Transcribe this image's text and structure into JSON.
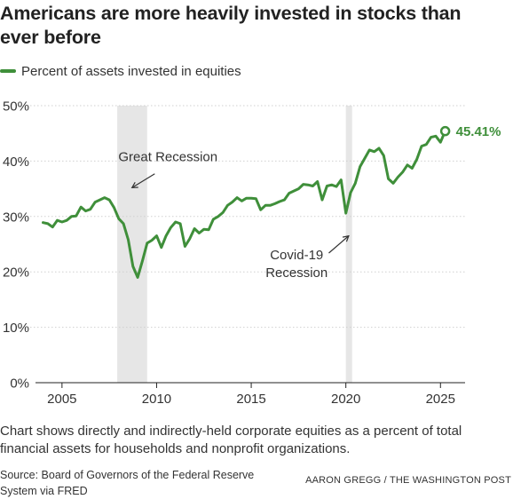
{
  "title": "Americans are more heavily invested in stocks than ever before",
  "caption": "Chart shows directly and indirectly-held corporate equities as a percent of total financial assets for households and nonprofit organizations.",
  "source": "Source: Board of Governors of the Federal Reserve System via FRED",
  "credit": "AARON GREGG / THE WASHINGTON POST",
  "colors": {
    "line": "#3f8f3a",
    "recession": "#e6e6e6",
    "grid": "#d0d0d0",
    "axis": "#222222"
  },
  "chart_data": {
    "type": "line",
    "series": [
      {
        "name": "Percent of assets invested in equities",
        "x": [
          2004.0,
          2004.25,
          2004.5,
          2004.75,
          2005.0,
          2005.25,
          2005.5,
          2005.75,
          2006.0,
          2006.25,
          2006.5,
          2006.75,
          2007.0,
          2007.25,
          2007.5,
          2007.75,
          2008.0,
          2008.25,
          2008.5,
          2008.75,
          2009.0,
          2009.25,
          2009.5,
          2009.75,
          2010.0,
          2010.25,
          2010.5,
          2010.75,
          2011.0,
          2011.25,
          2011.5,
          2011.75,
          2012.0,
          2012.25,
          2012.5,
          2012.75,
          2013.0,
          2013.25,
          2013.5,
          2013.75,
          2014.0,
          2014.25,
          2014.5,
          2014.75,
          2015.0,
          2015.25,
          2015.5,
          2015.75,
          2016.0,
          2016.25,
          2016.5,
          2016.75,
          2017.0,
          2017.25,
          2017.5,
          2017.75,
          2018.0,
          2018.25,
          2018.5,
          2018.75,
          2019.0,
          2019.25,
          2019.5,
          2019.75,
          2020.0,
          2020.25,
          2020.5,
          2020.75,
          2021.0,
          2021.25,
          2021.5,
          2021.75,
          2022.0,
          2022.25,
          2022.5,
          2022.75,
          2023.0,
          2023.25,
          2023.5,
          2023.75,
          2024.0,
          2024.25,
          2024.5,
          2024.75,
          2025.0,
          2025.25
        ],
        "values": [
          28.9,
          28.7,
          28.1,
          29.3,
          29.0,
          29.3,
          30.0,
          30.1,
          31.7,
          31.0,
          31.3,
          32.6,
          33.0,
          33.4,
          33.0,
          31.6,
          29.6,
          28.7,
          25.8,
          21.0,
          19.0,
          22.0,
          25.2,
          25.7,
          26.5,
          24.4,
          26.5,
          28.0,
          29.0,
          28.7,
          24.6,
          26.0,
          27.8,
          27.0,
          27.7,
          27.6,
          29.5,
          30.0,
          30.7,
          32.0,
          32.6,
          33.4,
          32.8,
          33.3,
          33.3,
          33.2,
          31.2,
          32.0,
          32.0,
          32.3,
          32.7,
          33.0,
          34.2,
          34.6,
          35.0,
          35.8,
          35.7,
          35.5,
          36.3,
          33.0,
          35.5,
          35.7,
          35.4,
          36.6,
          30.6,
          34.3,
          36.0,
          39.0,
          40.5,
          42.0,
          41.7,
          42.3,
          41.0,
          36.8,
          36.0,
          37.1,
          38.0,
          39.3,
          38.7,
          40.3,
          42.7,
          43.0,
          44.3,
          44.5,
          43.4,
          45.41
        ]
      }
    ],
    "end_label": "45.41%",
    "xlim": [
      2003.6,
      2026.3
    ],
    "ylim": [
      0,
      50
    ],
    "x_ticks": [
      2005,
      2010,
      2015,
      2020,
      2025
    ],
    "x_tick_labels": [
      "2005",
      "2010",
      "2015",
      "2020",
      "2025"
    ],
    "y_ticks": [
      0,
      10,
      20,
      30,
      40,
      50
    ],
    "y_tick_labels": [
      "0%",
      "10%",
      "20%",
      "30%",
      "40%",
      "50%"
    ],
    "grid": "horizontal",
    "legend": "top-left",
    "recessions": [
      {
        "start": 2007.92,
        "end": 2009.5
      },
      {
        "start": 2020.0,
        "end": 2020.33
      }
    ],
    "annotations": [
      {
        "text_lines": [
          "Great Recession"
        ],
        "x": 2010.6,
        "y": 40.0,
        "arrow_to": [
          2008.7,
          35.2
        ]
      },
      {
        "text_lines": [
          "Covid-19",
          "Recession"
        ],
        "x": 2017.4,
        "y": 22.3,
        "arrow_to": [
          2020.15,
          26.5
        ]
      }
    ],
    "xlabel": "",
    "ylabel": ""
  }
}
